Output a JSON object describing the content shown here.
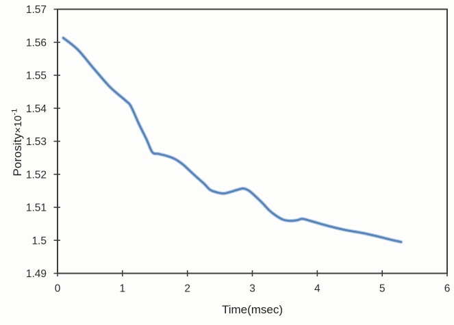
{
  "figure": {
    "background": "#fdfdfc"
  },
  "chart_data": {
    "type": "line",
    "title": "",
    "xlabel": "Time(msec)",
    "ylabel": "Porosity ×10⁻¹",
    "ylabel_parts": {
      "main": "Porosity",
      "mult": "×10",
      "exp": "-1"
    },
    "xlim": [
      0,
      6
    ],
    "ylim": [
      1.49,
      1.57
    ],
    "x_ticks": [
      0,
      1,
      2,
      3,
      4,
      5,
      6
    ],
    "x_tick_labels": [
      "0",
      "1",
      "2",
      "3",
      "4",
      "5",
      "6"
    ],
    "y_ticks": [
      1.49,
      1.5,
      1.51,
      1.52,
      1.53,
      1.54,
      1.55,
      1.56,
      1.57
    ],
    "y_tick_labels": [
      "1.49",
      "1.5",
      "1.51",
      "1.52",
      "1.53",
      "1.54",
      "1.55",
      "1.56",
      "1.57"
    ],
    "grid": false,
    "legend": "none",
    "line_color": "#5585bd",
    "axis_color": "#3d3d3d",
    "tick_label_color": "#2b2b2b",
    "series": [
      {
        "name": "porosity",
        "points": [
          [
            0.09,
            1.5613
          ],
          [
            0.31,
            1.5578
          ],
          [
            0.56,
            1.552
          ],
          [
            0.81,
            1.5464
          ],
          [
            1.05,
            1.5423
          ],
          [
            1.13,
            1.5406
          ],
          [
            1.25,
            1.5354
          ],
          [
            1.37,
            1.5306
          ],
          [
            1.46,
            1.5267
          ],
          [
            1.55,
            1.5262
          ],
          [
            1.66,
            1.5257
          ],
          [
            1.8,
            1.5247
          ],
          [
            1.93,
            1.523
          ],
          [
            2.03,
            1.5212
          ],
          [
            2.14,
            1.5192
          ],
          [
            2.26,
            1.5171
          ],
          [
            2.35,
            1.5153
          ],
          [
            2.46,
            1.5145
          ],
          [
            2.56,
            1.5142
          ],
          [
            2.67,
            1.5147
          ],
          [
            2.77,
            1.5153
          ],
          [
            2.86,
            1.5157
          ],
          [
            2.95,
            1.515
          ],
          [
            3.05,
            1.5133
          ],
          [
            3.16,
            1.5112
          ],
          [
            3.26,
            1.5091
          ],
          [
            3.37,
            1.5074
          ],
          [
            3.47,
            1.5063
          ],
          [
            3.58,
            1.5059
          ],
          [
            3.69,
            1.5061
          ],
          [
            3.77,
            1.5065
          ],
          [
            3.91,
            1.5058
          ],
          [
            4.18,
            1.5043
          ],
          [
            4.44,
            1.5031
          ],
          [
            4.7,
            1.5022
          ],
          [
            4.97,
            1.501
          ],
          [
            5.13,
            1.5002
          ],
          [
            5.29,
            1.4995
          ]
        ]
      }
    ]
  }
}
